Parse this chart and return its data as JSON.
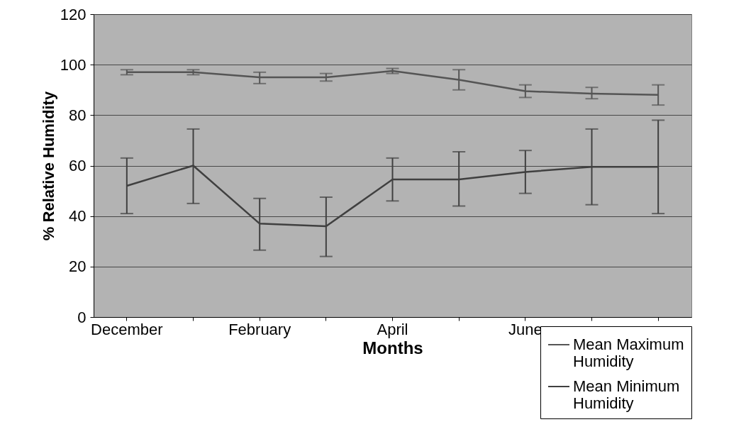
{
  "chart_data": {
    "type": "line",
    "xlabel": "Months",
    "ylabel": "% Relative Humidity",
    "categories": [
      "December",
      null,
      "February",
      null,
      "April",
      null,
      "June",
      null,
      null
    ],
    "series": [
      {
        "name": "Mean Maximum Humidity",
        "color": "#555555",
        "values": [
          97,
          97,
          95,
          95,
          97.5,
          94,
          89.5,
          88.5,
          88
        ],
        "errors": [
          [
            96,
            98
          ],
          [
            96,
            98
          ],
          [
            92.5,
            97
          ],
          [
            93.5,
            96.5
          ],
          [
            96.5,
            98.5
          ],
          [
            90,
            98
          ],
          [
            87,
            92
          ],
          [
            86.5,
            91
          ],
          [
            84,
            92
          ]
        ]
      },
      {
        "name": "Mean Minimum Humidity",
        "color": "#404040",
        "values": [
          52,
          60,
          37,
          36,
          54.5,
          54.5,
          57.5,
          59.5,
          59.5
        ],
        "errors": [
          [
            41,
            63
          ],
          [
            45,
            74.5
          ],
          [
            26.5,
            47
          ],
          [
            24,
            47.5
          ],
          [
            46,
            63
          ],
          [
            44,
            65.5
          ],
          [
            49,
            66
          ],
          [
            44.5,
            74.5
          ],
          [
            41,
            78
          ]
        ]
      }
    ],
    "ylim": [
      0,
      120
    ],
    "yticks": [
      0,
      20,
      40,
      60,
      80,
      100,
      120
    ],
    "grid": "y",
    "legend": "bottom right",
    "marker": "none",
    "line_style": "solid"
  }
}
